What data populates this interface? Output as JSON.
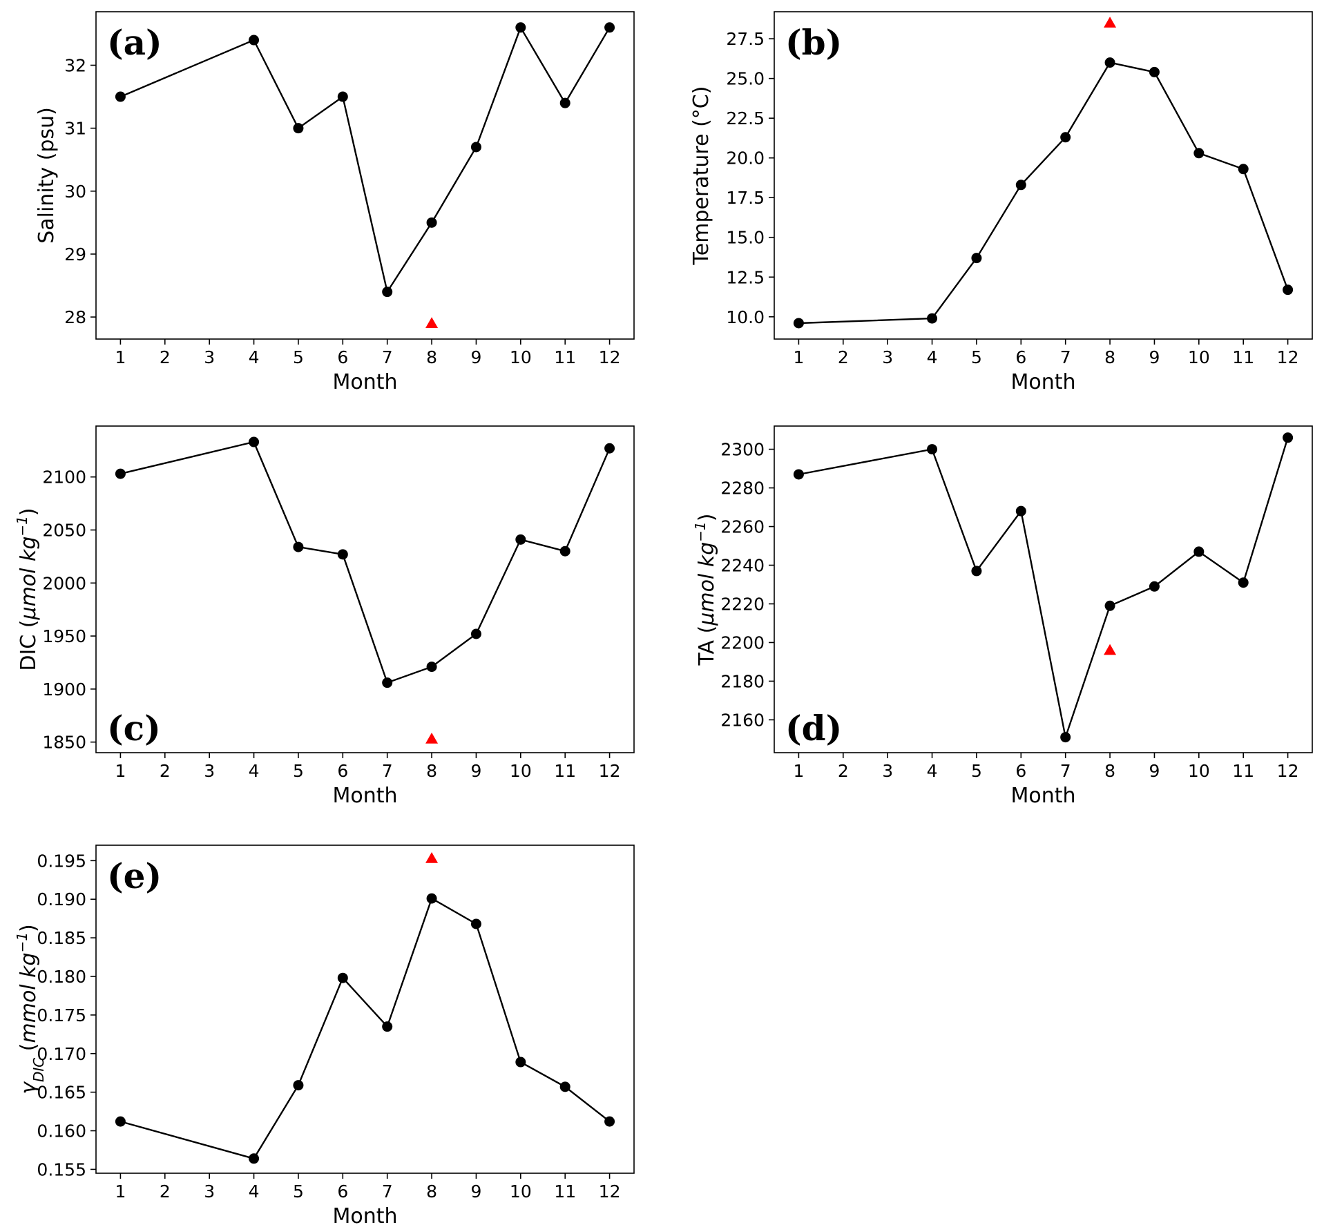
{
  "chart_data": [
    {
      "id": "a",
      "type": "line",
      "panel_label": "(a)",
      "xlabel": "Month",
      "ylabel": "Salinity (psu)",
      "ylabel_parts": [
        {
          "t": "Salinity (psu)"
        }
      ],
      "xticks": [
        1,
        2,
        3,
        4,
        5,
        6,
        7,
        8,
        9,
        10,
        11,
        12
      ],
      "yticks": [
        28,
        29,
        30,
        31,
        32
      ],
      "ytick_labels": [
        "28",
        "29",
        "30",
        "31",
        "32"
      ],
      "xlim": [
        0.45,
        12.55
      ],
      "ylim": [
        27.65,
        32.85
      ],
      "series": [
        {
          "x": [
            1,
            4,
            5,
            6,
            7,
            8,
            9,
            10,
            11,
            12
          ],
          "y": [
            31.5,
            32.4,
            31.0,
            31.5,
            28.4,
            29.5,
            30.7,
            32.6,
            31.4,
            32.6
          ],
          "color": "#000000",
          "marker": "circle"
        }
      ],
      "highlight": {
        "x": 8,
        "y": 27.9,
        "color": "#ff0000",
        "marker": "triangle"
      }
    },
    {
      "id": "b",
      "type": "line",
      "panel_label": "(b)",
      "xlabel": "Month",
      "ylabel": "Temperature (°C)",
      "ylabel_parts": [
        {
          "t": "Temperature (°C)"
        }
      ],
      "xticks": [
        1,
        2,
        3,
        4,
        5,
        6,
        7,
        8,
        9,
        10,
        11,
        12
      ],
      "yticks": [
        10.0,
        12.5,
        15.0,
        17.5,
        20.0,
        22.5,
        25.0,
        27.5
      ],
      "ytick_labels": [
        "10.0",
        "12.5",
        "15.0",
        "17.5",
        "20.0",
        "22.5",
        "25.0",
        "27.5"
      ],
      "xlim": [
        0.45,
        12.55
      ],
      "ylim": [
        8.6,
        29.2
      ],
      "series": [
        {
          "x": [
            1,
            4,
            5,
            6,
            7,
            8,
            9,
            10,
            11,
            12
          ],
          "y": [
            9.6,
            9.9,
            13.7,
            18.3,
            21.3,
            26.0,
            25.4,
            20.3,
            19.3,
            11.7
          ],
          "color": "#000000",
          "marker": "circle"
        }
      ],
      "highlight": {
        "x": 8,
        "y": 28.5,
        "color": "#ff0000",
        "marker": "triangle"
      }
    },
    {
      "id": "c",
      "type": "line",
      "panel_label": "(c)",
      "xlabel": "Month",
      "ylabel": "DIC (μmol kg⁻¹)",
      "ylabel_parts": [
        {
          "t": "DIC ("
        },
        {
          "t": "μmol kg",
          "i": true
        },
        {
          "t": "−1",
          "i": true,
          "sup": true
        },
        {
          "t": ")"
        }
      ],
      "xticks": [
        1,
        2,
        3,
        4,
        5,
        6,
        7,
        8,
        9,
        10,
        11,
        12
      ],
      "yticks": [
        1850,
        1900,
        1950,
        2000,
        2050,
        2100
      ],
      "ytick_labels": [
        "1850",
        "1900",
        "1950",
        "2000",
        "2050",
        "2100"
      ],
      "xlim": [
        0.45,
        12.55
      ],
      "ylim": [
        1840,
        2148
      ],
      "series": [
        {
          "x": [
            1,
            4,
            5,
            6,
            7,
            8,
            9,
            10,
            11,
            12
          ],
          "y": [
            2103,
            2133,
            2034,
            2027,
            1906,
            1921,
            1952,
            2041,
            2030,
            2127
          ],
          "color": "#000000",
          "marker": "circle"
        }
      ],
      "highlight": {
        "x": 8,
        "y": 1853,
        "color": "#ff0000",
        "marker": "triangle"
      }
    },
    {
      "id": "d",
      "type": "line",
      "panel_label": "(d)",
      "xlabel": "Month",
      "ylabel": "TA (μmol kg⁻¹)",
      "ylabel_parts": [
        {
          "t": "TA ("
        },
        {
          "t": "μmol kg",
          "i": true
        },
        {
          "t": "−1",
          "i": true,
          "sup": true
        },
        {
          "t": ")"
        }
      ],
      "xticks": [
        1,
        2,
        3,
        4,
        5,
        6,
        7,
        8,
        9,
        10,
        11,
        12
      ],
      "yticks": [
        2160,
        2180,
        2200,
        2220,
        2240,
        2260,
        2280,
        2300
      ],
      "ytick_labels": [
        "2160",
        "2180",
        "2200",
        "2220",
        "2240",
        "2260",
        "2280",
        "2300"
      ],
      "xlim": [
        0.45,
        12.55
      ],
      "ylim": [
        2143,
        2312
      ],
      "series": [
        {
          "x": [
            1,
            4,
            5,
            6,
            7,
            8,
            9,
            10,
            11,
            12
          ],
          "y": [
            2287,
            2300,
            2237,
            2268,
            2151,
            2219,
            2229,
            2247,
            2231,
            2306
          ],
          "color": "#000000",
          "marker": "circle"
        }
      ],
      "highlight": {
        "x": 8,
        "y": 2196,
        "color": "#ff0000",
        "marker": "triangle"
      }
    },
    {
      "id": "e",
      "type": "line",
      "panel_label": "(e)",
      "xlabel": "Month",
      "ylabel": "γDIC (mmol kg⁻¹)",
      "ylabel_parts": [
        {
          "t": "γ",
          "i": true
        },
        {
          "t": "DIC",
          "i": true,
          "sub": true
        },
        {
          "t": " ("
        },
        {
          "t": "mmol kg",
          "i": true
        },
        {
          "t": "−1",
          "i": true,
          "sup": true
        },
        {
          "t": ")"
        }
      ],
      "xticks": [
        1,
        2,
        3,
        4,
        5,
        6,
        7,
        8,
        9,
        10,
        11,
        12
      ],
      "yticks": [
        0.155,
        0.16,
        0.165,
        0.17,
        0.175,
        0.18,
        0.185,
        0.19,
        0.195
      ],
      "ytick_labels": [
        "0.155",
        "0.160",
        "0.165",
        "0.170",
        "0.175",
        "0.180",
        "0.185",
        "0.190",
        "0.195"
      ],
      "xlim": [
        0.45,
        12.55
      ],
      "ylim": [
        0.1545,
        0.197
      ],
      "series": [
        {
          "x": [
            1,
            4,
            5,
            6,
            7,
            8,
            9,
            10,
            11,
            12
          ],
          "y": [
            0.1612,
            0.1564,
            0.1659,
            0.1798,
            0.1735,
            0.1901,
            0.1868,
            0.1689,
            0.1657,
            0.1612
          ],
          "color": "#000000",
          "marker": "circle"
        }
      ],
      "highlight": {
        "x": 8,
        "y": 0.1953,
        "color": "#ff0000",
        "marker": "triangle"
      }
    }
  ]
}
